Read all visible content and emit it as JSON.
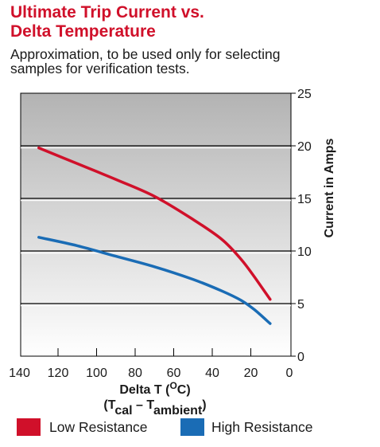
{
  "title_lines": [
    "Ultimate Trip Current vs.",
    "Delta Temperature"
  ],
  "subtitle_lines": [
    "Approximation, to be used only for selecting",
    "samples for verification tests."
  ],
  "colors": {
    "title": "#d0102a",
    "low_resistance": "#d0102a",
    "high_resistance": "#1a6cb5"
  },
  "chart_data": {
    "type": "line",
    "xlabel_main": "Delta T (",
    "xlabel_unit_sup": "O",
    "xlabel_unit_rest": "C)",
    "xlabel_sub_open": "(T",
    "xlabel_sub1": "cal",
    "xlabel_mid": " – T",
    "xlabel_sub2": "ambient",
    "xlabel_close": ")",
    "ylabel": "Current in Amps",
    "xlim": [
      140,
      0
    ],
    "ylim": [
      0,
      25
    ],
    "x_ticks": [
      "140",
      "120",
      "100",
      "80",
      "60",
      "40",
      "20",
      "0"
    ],
    "y_ticks": [
      "0",
      "5",
      "10",
      "15",
      "20",
      "25"
    ],
    "grid": true,
    "legend_position": "bottom",
    "series": [
      {
        "name": "Low Resistance",
        "x": [
          130,
          110,
          90,
          70,
          50,
          35,
          25,
          18,
          10
        ],
        "y": [
          19.8,
          18.3,
          16.8,
          15.2,
          13.0,
          11.1,
          9.2,
          7.5,
          5.4
        ]
      },
      {
        "name": "High Resistance",
        "x": [
          130,
          110,
          90,
          70,
          50,
          35,
          25,
          18,
          10
        ],
        "y": [
          11.3,
          10.5,
          9.5,
          8.5,
          7.3,
          6.2,
          5.3,
          4.4,
          3.1
        ]
      }
    ]
  }
}
